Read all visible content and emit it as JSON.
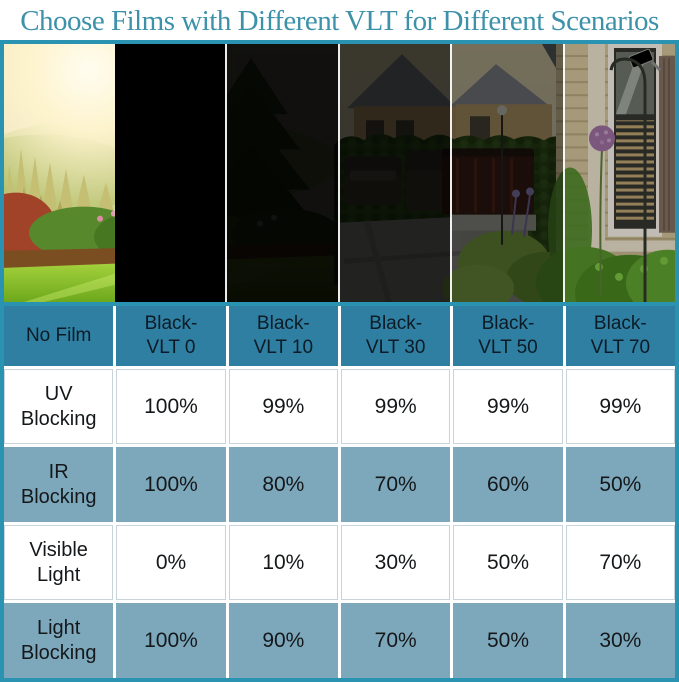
{
  "title": "Choose Films with Different VLT for Different Scenarios",
  "colors": {
    "title_text": "#3d92aa",
    "frame_border": "#2a93b2",
    "header_bg": "#2e7fa2",
    "header_text": "#0d1b26",
    "row_bg_white": "#ffffff",
    "row_bg_blue": "#7da8bc",
    "value_text": "#15181a"
  },
  "photo": {
    "description": "backyard garden scene viewed through six vertical film strips",
    "strips": [
      {
        "name": "no-film",
        "label": "No Film",
        "overlay_opacity": 0
      },
      {
        "name": "vlt-0",
        "label": "Black-VLT 0",
        "overlay_opacity": 1
      },
      {
        "name": "vlt-10",
        "label": "Black-VLT 10",
        "overlay_opacity": 0.93
      },
      {
        "name": "vlt-30",
        "label": "Black-VLT 30",
        "overlay_opacity": 0.76
      },
      {
        "name": "vlt-50",
        "label": "Black-VLT 50",
        "overlay_opacity": 0.52
      },
      {
        "name": "vlt-70",
        "label": "Black-VLT 70",
        "overlay_opacity": 0.2
      }
    ]
  },
  "chart_data": {
    "type": "table",
    "title": "Choose Films with Different VLT for Different Scenarios",
    "columns": [
      {
        "label": "No Film",
        "lines": [
          "No Film"
        ]
      },
      {
        "label": "Black-VLT 0",
        "lines": [
          "Black-",
          "VLT 0"
        ]
      },
      {
        "label": "Black-VLT 10",
        "lines": [
          "Black-",
          "VLT 10"
        ]
      },
      {
        "label": "Black-VLT 30",
        "lines": [
          "Black-",
          "VLT 30"
        ]
      },
      {
        "label": "Black-VLT 50",
        "lines": [
          "Black-",
          "VLT 50"
        ]
      },
      {
        "label": "Black-VLT 70",
        "lines": [
          "Black-",
          "VLT 70"
        ]
      }
    ],
    "rows": [
      {
        "key": "uv-blocking",
        "label": "UV Blocking",
        "label_lines": [
          "UV",
          "Blocking"
        ],
        "values": [
          "100%",
          "99%",
          "99%",
          "99%",
          "99%"
        ]
      },
      {
        "key": "ir-blocking",
        "label": "IR Blocking",
        "label_lines": [
          "IR",
          "Blocking"
        ],
        "values": [
          "100%",
          "80%",
          "70%",
          "60%",
          "50%"
        ]
      },
      {
        "key": "visible-light",
        "label": "Visible Light",
        "label_lines": [
          "Visible",
          "Light"
        ],
        "values": [
          "0%",
          "10%",
          "30%",
          "50%",
          "70%"
        ]
      },
      {
        "key": "light-blocking",
        "label": "Light Blocking",
        "label_lines": [
          "Light",
          "Blocking"
        ],
        "values": [
          "100%",
          "90%",
          "70%",
          "50%",
          "30%"
        ]
      }
    ]
  }
}
